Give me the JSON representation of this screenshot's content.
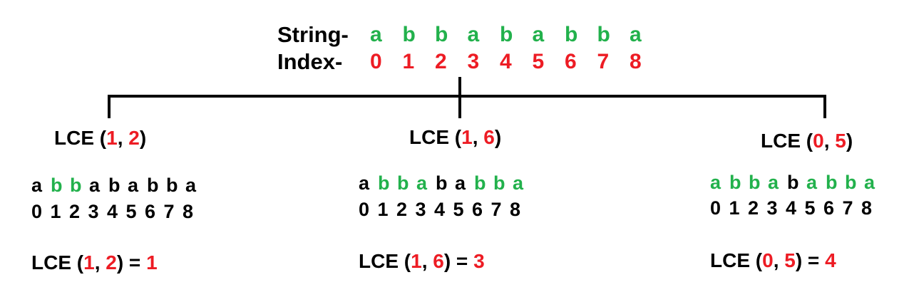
{
  "header": {
    "string_label": "String-",
    "index_label": "Index-",
    "chars": [
      "a",
      "b",
      "b",
      "a",
      "b",
      "a",
      "b",
      "b",
      "a"
    ],
    "indices": [
      "0",
      "1",
      "2",
      "3",
      "4",
      "5",
      "6",
      "7",
      "8"
    ]
  },
  "queries": [
    {
      "title_prefix": "LCE (",
      "i": "1",
      "comma": ", ",
      "j": "2",
      "title_suffix": ")",
      "chars": [
        "a",
        "b",
        "b",
        "a",
        "b",
        "a",
        "b",
        "b",
        "a"
      ],
      "highlight": [
        false,
        true,
        true,
        false,
        false,
        false,
        false,
        false,
        false
      ],
      "digits": [
        "0",
        "1",
        "2",
        "3",
        "4",
        "5",
        "6",
        "7",
        "8"
      ],
      "result_prefix": "LCE (",
      "result_mid": ") = ",
      "result_value": "1"
    },
    {
      "title_prefix": "LCE (",
      "i": "1",
      "comma": ", ",
      "j": "6",
      "title_suffix": ")",
      "chars": [
        "a",
        "b",
        "b",
        "a",
        "b",
        "a",
        "b",
        "b",
        "a"
      ],
      "highlight": [
        false,
        true,
        true,
        true,
        false,
        false,
        true,
        true,
        true
      ],
      "digits": [
        "0",
        "1",
        "2",
        "3",
        "4",
        "5",
        "6",
        "7",
        "8"
      ],
      "result_prefix": "LCE (",
      "result_mid": ") = ",
      "result_value": "3"
    },
    {
      "title_prefix": "LCE (",
      "i": "0",
      "comma": ", ",
      "j": "5",
      "title_suffix": ")",
      "chars": [
        "a",
        "b",
        "b",
        "a",
        "b",
        "a",
        "b",
        "b",
        "a"
      ],
      "highlight": [
        true,
        true,
        true,
        true,
        false,
        true,
        true,
        true,
        true
      ],
      "digits": [
        "0",
        "1",
        "2",
        "3",
        "4",
        "5",
        "6",
        "7",
        "8"
      ],
      "result_prefix": "LCE (",
      "result_mid": ") = ",
      "result_value": "4"
    }
  ],
  "colors": {
    "match": "#22b14c",
    "index": "#ed1c24",
    "text": "#000000"
  }
}
